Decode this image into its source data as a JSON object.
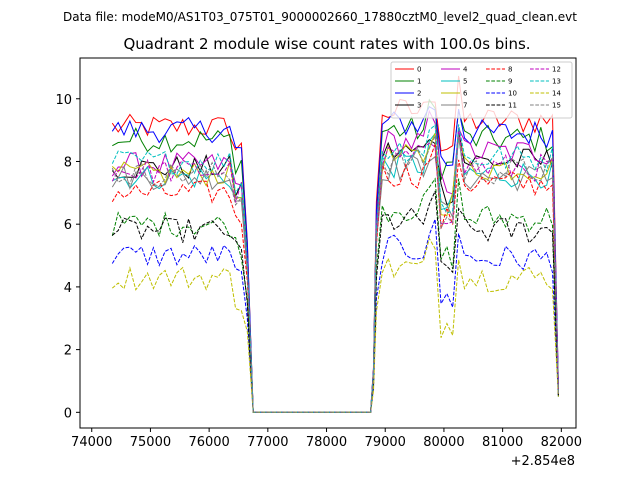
{
  "figure": {
    "suptitle": "Data file: modeM0/AS1T03_075T01_9000002660_17880cztM0_level2_quad_clean.evt",
    "title": "Quadrant 2 module wise count rates with 100.0s bins.",
    "x_offset_label": "+2.854e8"
  },
  "chart_data": {
    "type": "line",
    "title": "Quadrant 2 module wise count rates with 100.0s bins.",
    "xlabel": "",
    "ylabel": "",
    "x_offset": "+2.854e8",
    "xlim": [
      73800,
      82250
    ],
    "ylim": [
      -0.5,
      11.3
    ],
    "xticks": [
      74000,
      75000,
      76000,
      77000,
      78000,
      79000,
      80000,
      81000,
      82000
    ],
    "yticks": [
      0,
      2,
      4,
      6,
      8,
      10
    ],
    "grid": false,
    "legend_position": "top-right",
    "legend_columns": 4,
    "bin_size_s": 100,
    "active_start": 74350,
    "active_end_first": 76550,
    "gap_start": 76750,
    "gap_end": 78750,
    "second_start": 78850,
    "second_end": 81850,
    "last_x": 81950,
    "series": [
      {
        "name": "0",
        "color": "#ff0000",
        "dash": "solid",
        "level1": 9.1,
        "level2": 9.6,
        "end": 0.8
      },
      {
        "name": "1",
        "color": "#008000",
        "dash": "solid",
        "level1": 8.7,
        "level2": 9.0,
        "end": 0.7
      },
      {
        "name": "2",
        "color": "#0000ff",
        "dash": "solid",
        "level1": 9.0,
        "level2": 9.2,
        "end": 0.9
      },
      {
        "name": "3",
        "color": "#000000",
        "dash": "solid",
        "level1": 7.8,
        "level2": 8.3,
        "end": 0.6
      },
      {
        "name": "4",
        "color": "#bf00bf",
        "dash": "solid",
        "level1": 7.9,
        "level2": 8.6,
        "end": 0.7
      },
      {
        "name": "5",
        "color": "#00bfbf",
        "dash": "solid",
        "level1": 7.5,
        "level2": 7.9,
        "end": 0.6
      },
      {
        "name": "6",
        "color": "#bfbf00",
        "dash": "solid",
        "level1": 7.6,
        "level2": 8.1,
        "end": 0.6
      },
      {
        "name": "7",
        "color": "#808080",
        "dash": "solid",
        "level1": 7.5,
        "level2": 7.8,
        "end": 0.6
      },
      {
        "name": "8",
        "color": "#ff0000",
        "dash": "dashed",
        "level1": 7.0,
        "level2": 7.6,
        "end": 0.6
      },
      {
        "name": "9",
        "color": "#008000",
        "dash": "dashed",
        "level1": 6.0,
        "level2": 6.5,
        "end": 0.5
      },
      {
        "name": "10",
        "color": "#0000ff",
        "dash": "dashed",
        "level1": 5.0,
        "level2": 5.2,
        "end": 0.5
      },
      {
        "name": "11",
        "color": "#000000",
        "dash": "dashed",
        "level1": 5.8,
        "level2": 6.1,
        "end": 0.5
      },
      {
        "name": "12",
        "color": "#bf00bf",
        "dash": "dashed",
        "level1": 7.7,
        "level2": 8.1,
        "end": 0.6
      },
      {
        "name": "13",
        "color": "#00bfbf",
        "dash": "dashed",
        "level1": 8.0,
        "level2": 8.4,
        "end": 0.6
      },
      {
        "name": "14",
        "color": "#bfbf00",
        "dash": "dashed",
        "level1": 4.3,
        "level2": 4.6,
        "end": 0.5
      },
      {
        "name": "15",
        "color": "#808080",
        "dash": "dashed",
        "level1": 7.6,
        "level2": 8.0,
        "end": 0.6
      }
    ]
  }
}
